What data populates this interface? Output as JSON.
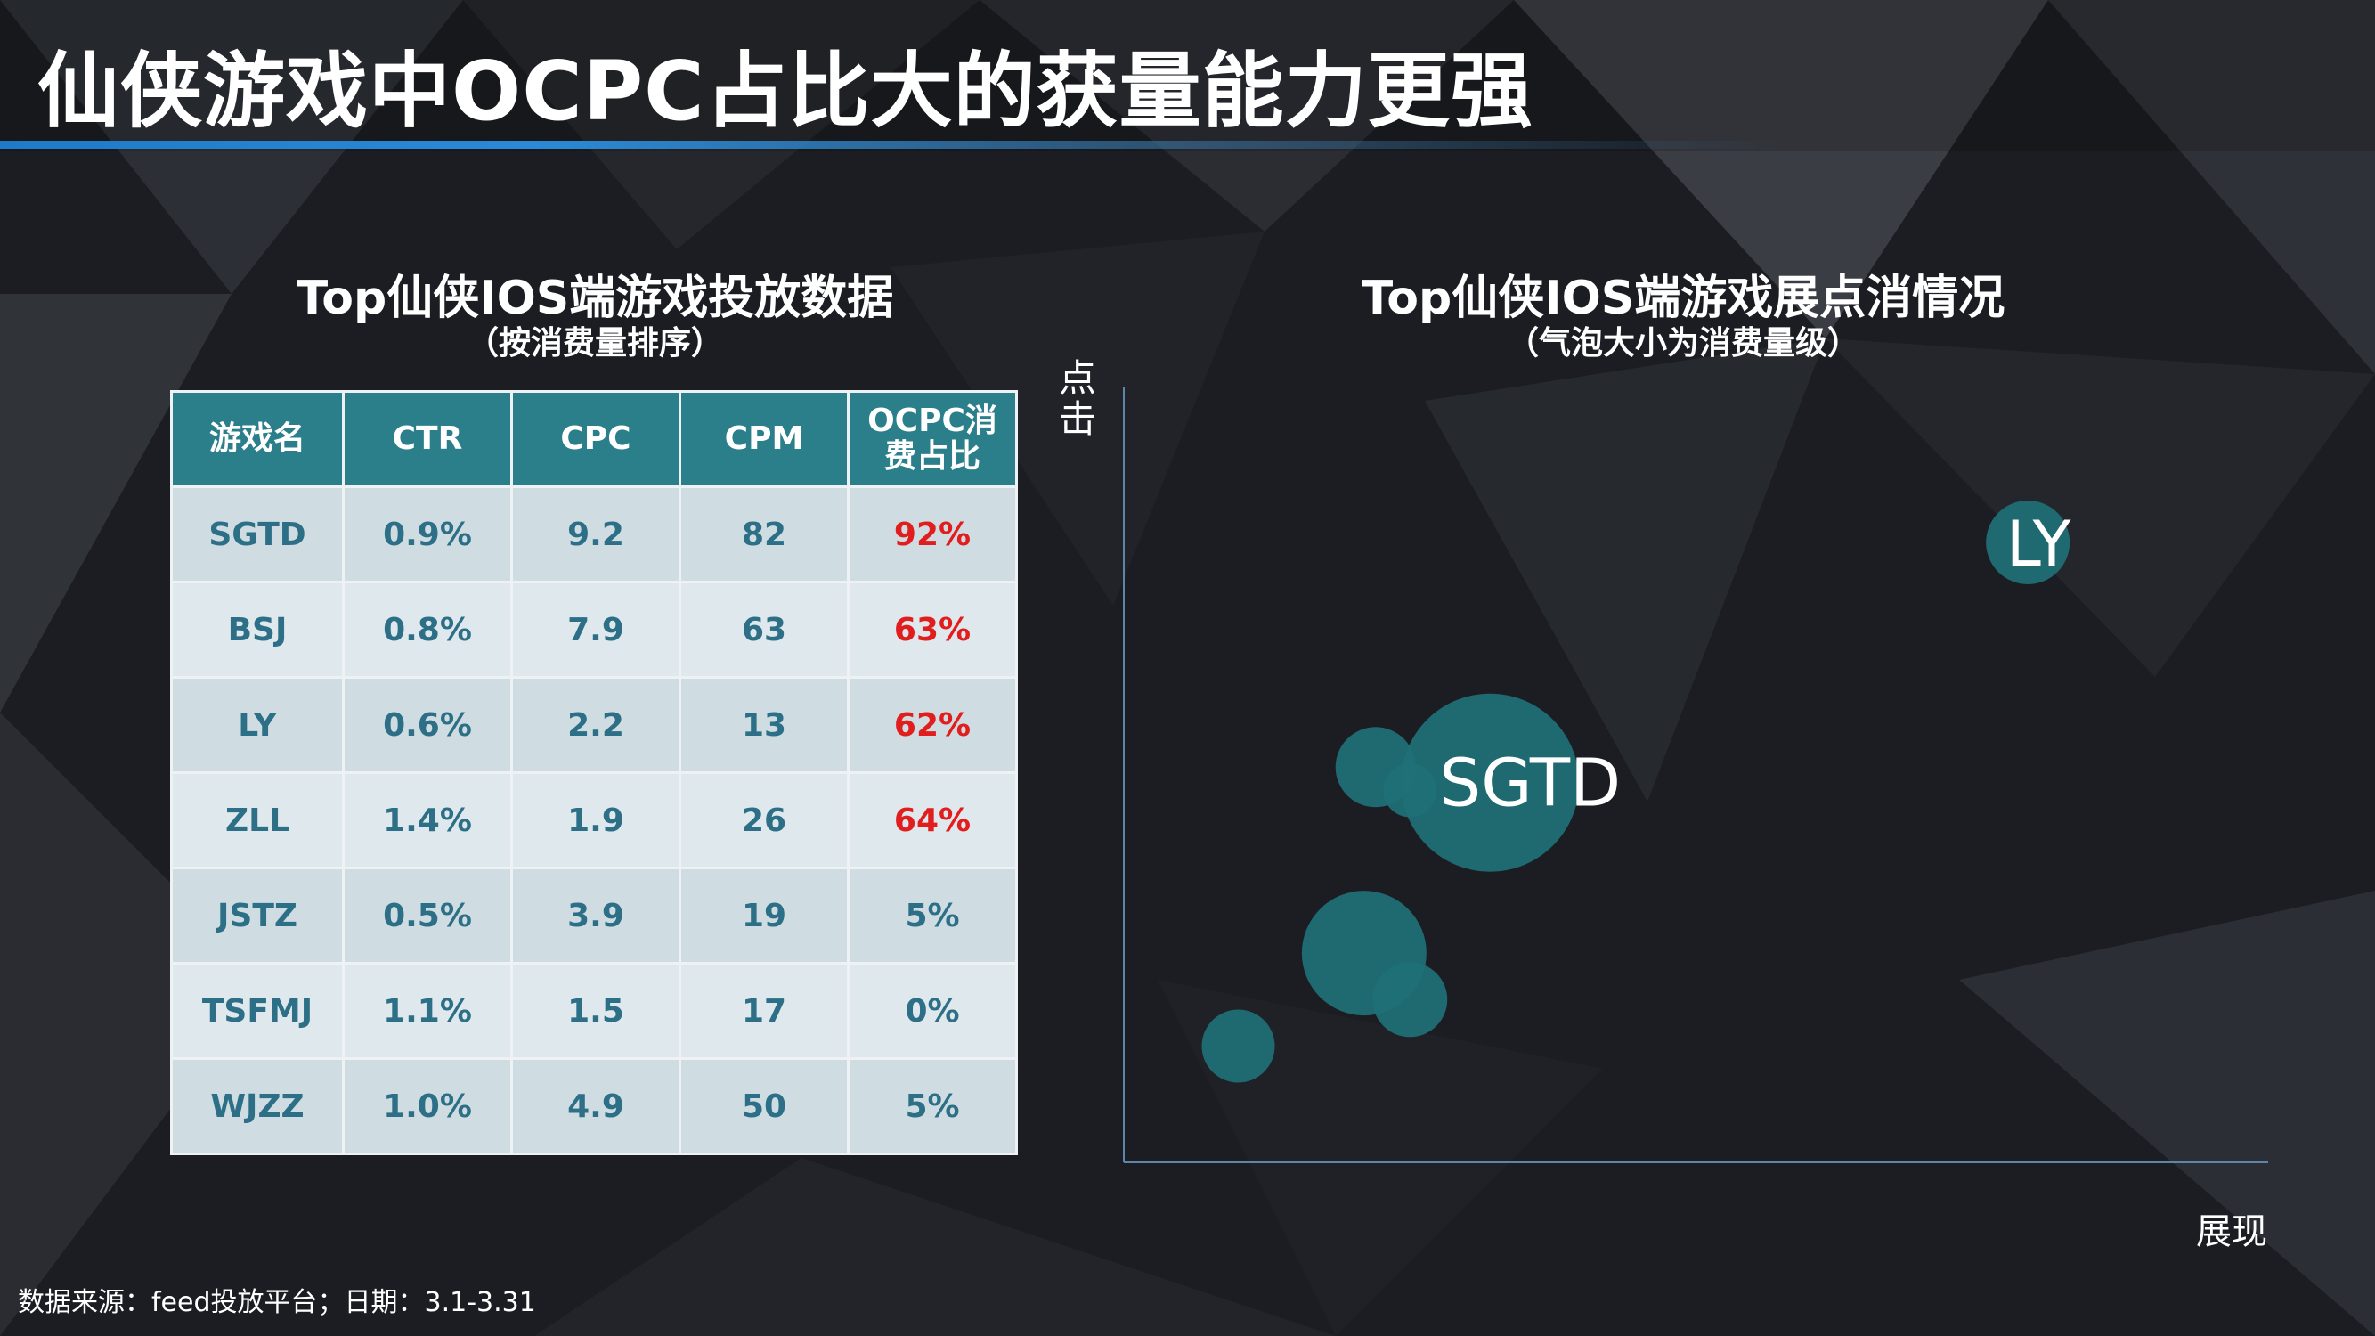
{
  "slide": {
    "title": "仙侠游戏中OCPC占比大的获量能力更强",
    "source": "数据来源：feed投放平台；日期：3.1-3.31"
  },
  "left_panel": {
    "title": "Top仙侠IOS端游戏投放数据",
    "subtitle": "（按消费量排序）"
  },
  "right_panel": {
    "title": "Top仙侠IOS端游戏展点消情况",
    "subtitle": "（气泡大小为消费量级）",
    "y_axis_label": "点击",
    "x_axis_label": "展现"
  },
  "colors": {
    "header_bg": "#2b7f8b",
    "highlight_text": "#e11d1d",
    "cell_text": "#2c6f86",
    "bubble": "#1f7077",
    "title_underline": "#1f7ac9"
  },
  "chart_data": [
    {
      "type": "table",
      "columns": [
        "游戏名",
        "CTR",
        "CPC",
        "CPM",
        "OCPC消费占比"
      ],
      "rows": [
        [
          "SGTD",
          "0.9%",
          "9.2",
          "82",
          "92%"
        ],
        [
          "BSJ",
          "0.8%",
          "7.9",
          "63",
          "63%"
        ],
        [
          "LY",
          "0.6%",
          "2.2",
          "13",
          "62%"
        ],
        [
          "ZLL",
          "1.4%",
          "1.9",
          "26",
          "64%"
        ],
        [
          "JSTZ",
          "0.5%",
          "3.9",
          "19",
          "5%"
        ],
        [
          "TSFMJ",
          "1.1%",
          "1.5",
          "17",
          "0%"
        ],
        [
          "WJZZ",
          "1.0%",
          "4.9",
          "50",
          "5%"
        ]
      ],
      "highlighted_rows": [
        0,
        1,
        2,
        3
      ],
      "highlighted_column": 4
    },
    {
      "type": "scatter",
      "title": "Top仙侠IOS端游戏展点消情况",
      "subtitle": "（气泡大小为消费量级）",
      "xlabel": "展现",
      "ylabel": "点击",
      "xlim": [
        0,
        100
      ],
      "ylim": [
        0,
        100
      ],
      "grid": false,
      "points": [
        {
          "label": "LY",
          "x": 79,
          "y": 80,
          "size": 0.47
        },
        {
          "label": "SGTD",
          "x": 32,
          "y": 49,
          "size": 1.0
        },
        {
          "label": "",
          "x": 22,
          "y": 51,
          "size": 0.45
        },
        {
          "label": "",
          "x": 25,
          "y": 48,
          "size": 0.3
        },
        {
          "label": "",
          "x": 21,
          "y": 27,
          "size": 0.7
        },
        {
          "label": "",
          "x": 25,
          "y": 21,
          "size": 0.42
        },
        {
          "label": "",
          "x": 10,
          "y": 15,
          "size": 0.41
        }
      ]
    }
  ]
}
